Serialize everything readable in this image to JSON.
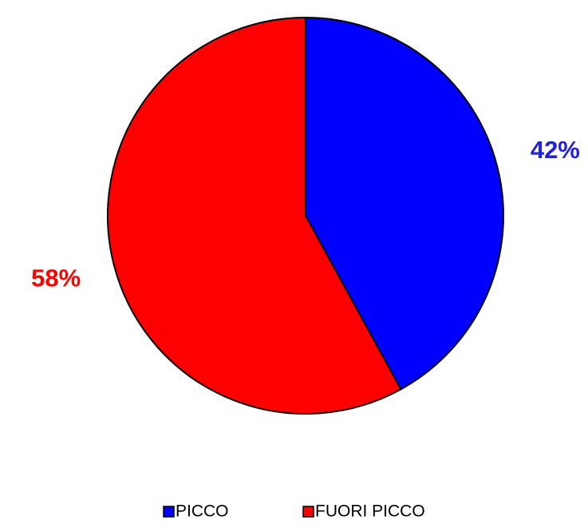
{
  "chart_data": {
    "type": "pie",
    "categories": [
      "PICCO",
      "FUORI PICCO"
    ],
    "values": [
      42,
      58
    ],
    "data_labels": [
      "42%",
      "58%"
    ],
    "colors": [
      "#0000ff",
      "#ff0000"
    ],
    "label_colors": [
      "#1f1fe6",
      "#ff0000"
    ],
    "start_angle_deg": 0,
    "direction": "clockwise",
    "legend_position": "bottom",
    "title": "",
    "grid": false
  }
}
